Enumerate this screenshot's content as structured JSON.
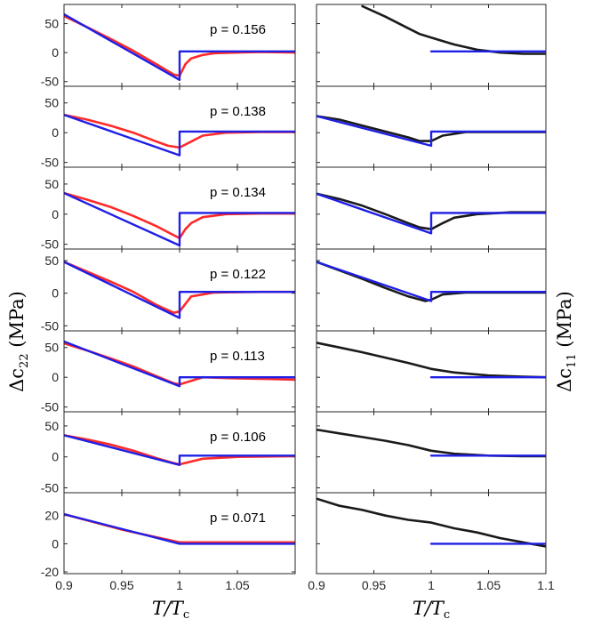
{
  "figure": {
    "ylabel_left": {
      "main": "Δc",
      "sub": "22",
      "unit": " (MPa)"
    },
    "ylabel_right": {
      "main": "Δc",
      "sub": "11",
      "unit": " (MPa)"
    },
    "xlabel": {
      "main": "T/T",
      "sub": "c"
    }
  },
  "colors": {
    "model": "#1f1fe6",
    "data_left": "#ff2a2a",
    "data_right": "#1a1a1a",
    "axes": "#262626"
  },
  "chart_data": [
    {
      "type": "line",
      "panel": "left",
      "title": "",
      "xlabel": "T/Tc",
      "ylabel": "Δc22 (MPa)",
      "xlim": [
        0.9,
        1.1
      ],
      "xticks": [
        0.9,
        0.95,
        1,
        1.05
      ],
      "grid": false,
      "rows": [
        {
          "label": "p = 0.156",
          "ylim": [
            -55,
            80
          ],
          "yticks": [
            -50,
            0,
            50
          ],
          "series": [
            {
              "name": "",
              "color": "#ff2a2a",
              "x": [
                0.9,
                0.92,
                0.94,
                0.96,
                0.98,
                0.995,
                1.0,
                1.005,
                1.01,
                1.02,
                1.03,
                1.05,
                1.07,
                1.1
              ],
              "y": [
                63,
                44,
                24,
                3,
                -20,
                -38,
                -40,
                -20,
                -10,
                -4,
                -1,
                0,
                1,
                0
              ]
            },
            {
              "name": "",
              "color": "#1f1fe6",
              "x": [
                0.9,
                1.0,
                1.0,
                1.1
              ],
              "y": [
                66,
                -47,
                2,
                2
              ]
            }
          ]
        },
        {
          "label": "p = 0.138",
          "ylim": [
            -55,
            75
          ],
          "yticks": [
            -50,
            0,
            50
          ],
          "series": [
            {
              "name": "",
              "color": "#ff2a2a",
              "x": [
                0.9,
                0.92,
                0.94,
                0.96,
                0.98,
                0.99,
                1.0,
                1.01,
                1.02,
                1.04,
                1.07,
                1.1
              ],
              "y": [
                30,
                22,
                12,
                0,
                -15,
                -22,
                -25,
                -15,
                -5,
                0,
                1,
                1
              ]
            },
            {
              "name": "",
              "color": "#1f1fe6",
              "x": [
                0.9,
                1.0,
                1.0,
                1.1
              ],
              "y": [
                30,
                -38,
                2,
                2
              ]
            }
          ]
        },
        {
          "label": "p = 0.134",
          "ylim": [
            -55,
            75
          ],
          "yticks": [
            -50,
            0,
            50
          ],
          "series": [
            {
              "name": "",
              "color": "#ff2a2a",
              "x": [
                0.9,
                0.92,
                0.94,
                0.96,
                0.98,
                0.99,
                1.0,
                1.005,
                1.01,
                1.02,
                1.04,
                1.07,
                1.1
              ],
              "y": [
                35,
                24,
                12,
                -3,
                -20,
                -30,
                -40,
                -25,
                -15,
                -5,
                0,
                1,
                1
              ]
            },
            {
              "name": "",
              "color": "#1f1fe6",
              "x": [
                0.9,
                1.0,
                1.0,
                1.1
              ],
              "y": [
                35,
                -52,
                2,
                2
              ]
            }
          ]
        },
        {
          "label": "p = 0.122",
          "ylim": [
            -55,
            65
          ],
          "yticks": [
            -50,
            0,
            50
          ],
          "series": [
            {
              "name": "",
              "color": "#ff2a2a",
              "x": [
                0.9,
                0.92,
                0.94,
                0.96,
                0.98,
                0.995,
                1.0,
                1.01,
                1.03,
                1.07,
                1.1
              ],
              "y": [
                48,
                33,
                18,
                2,
                -18,
                -30,
                -28,
                -5,
                1,
                2,
                2
              ]
            },
            {
              "name": "",
              "color": "#1f1fe6",
              "x": [
                0.9,
                1.0,
                1.0,
                1.1
              ],
              "y": [
                48,
                -38,
                2,
                2
              ]
            }
          ]
        },
        {
          "label": "p = 0.113",
          "ylim": [
            -55,
            75
          ],
          "yticks": [
            -50,
            0,
            50
          ],
          "series": [
            {
              "name": "",
              "color": "#ff2a2a",
              "x": [
                0.9,
                0.92,
                0.94,
                0.96,
                0.98,
                0.995,
                1.0,
                1.02,
                1.05,
                1.08,
                1.1
              ],
              "y": [
                57,
                45,
                32,
                18,
                2,
                -10,
                -12,
                0,
                -2,
                -3,
                -4
              ]
            },
            {
              "name": "",
              "color": "#1f1fe6",
              "x": [
                0.9,
                1.0,
                1.0,
                1.1
              ],
              "y": [
                60,
                -15,
                0,
                0
              ]
            }
          ]
        },
        {
          "label": "p = 0.106",
          "ylim": [
            -55,
            70
          ],
          "yticks": [
            -50,
            0,
            50
          ],
          "series": [
            {
              "name": "",
              "color": "#ff2a2a",
              "x": [
                0.9,
                0.92,
                0.94,
                0.96,
                0.98,
                0.995,
                1.0,
                1.02,
                1.05,
                1.1
              ],
              "y": [
                35,
                28,
                20,
                10,
                -2,
                -10,
                -12,
                -3,
                0,
                1
              ]
            },
            {
              "name": "",
              "color": "#1f1fe6",
              "x": [
                0.9,
                1.0,
                1.0,
                1.1
              ],
              "y": [
                35,
                -13,
                2,
                2
              ]
            }
          ]
        },
        {
          "label": "p = 0.071",
          "ylim": [
            -20,
            35
          ],
          "yticks": [
            -20,
            0,
            20
          ],
          "series": [
            {
              "name": "",
              "color": "#ff2a2a",
              "x": [
                0.9,
                0.95,
                1.0,
                1.05,
                1.1
              ],
              "y": [
                21,
                10,
                1,
                1,
                1
              ]
            },
            {
              "name": "",
              "color": "#1f1fe6",
              "x": [
                0.9,
                1.0,
                1.0,
                1.1
              ],
              "y": [
                21,
                0,
                0,
                0
              ]
            }
          ]
        }
      ]
    },
    {
      "type": "line",
      "panel": "right",
      "title": "",
      "xlabel": "T/Tc",
      "ylabel": "Δc11 (MPa)",
      "xlim": [
        0.9,
        1.1
      ],
      "xticks": [
        0.9,
        0.95,
        1,
        1.05,
        1.1
      ],
      "grid": false,
      "rows": [
        {
          "label": "",
          "ylim": [
            -55,
            80
          ],
          "series": [
            {
              "name": "",
              "color": "#1a1a1a",
              "x": [
                0.94,
                0.96,
                0.98,
                0.99,
                1.0,
                1.02,
                1.04,
                1.06,
                1.08,
                1.1
              ],
              "y": [
                80,
                62,
                42,
                32,
                26,
                14,
                5,
                0,
                -2,
                -2
              ]
            },
            {
              "name": "",
              "color": "#1f1fe6",
              "x": [
                1.0,
                1.1
              ],
              "y": [
                2,
                2
              ]
            }
          ]
        },
        {
          "label": "",
          "ylim": [
            -55,
            75
          ],
          "series": [
            {
              "name": "",
              "color": "#1a1a1a",
              "x": [
                0.9,
                0.92,
                0.94,
                0.96,
                0.98,
                0.99,
                1.0,
                1.01,
                1.03,
                1.07,
                1.1
              ],
              "y": [
                28,
                22,
                12,
                2,
                -8,
                -14,
                -14,
                -5,
                1,
                1,
                1
              ]
            },
            {
              "name": "",
              "color": "#1f1fe6",
              "x": [
                0.9,
                1.0,
                1.0,
                1.1
              ],
              "y": [
                28,
                -22,
                2,
                2
              ]
            }
          ]
        },
        {
          "label": "",
          "ylim": [
            -55,
            75
          ],
          "series": [
            {
              "name": "",
              "color": "#1a1a1a",
              "x": [
                0.9,
                0.92,
                0.94,
                0.96,
                0.98,
                0.99,
                1.0,
                1.01,
                1.02,
                1.04,
                1.07,
                1.1
              ],
              "y": [
                34,
                25,
                14,
                0,
                -15,
                -22,
                -25,
                -15,
                -6,
                0,
                3,
                3
              ]
            },
            {
              "name": "",
              "color": "#1f1fe6",
              "x": [
                0.9,
                1.0,
                1.0,
                1.1
              ],
              "y": [
                34,
                -32,
                2,
                2
              ]
            }
          ]
        },
        {
          "label": "",
          "ylim": [
            -55,
            65
          ],
          "series": [
            {
              "name": "",
              "color": "#1a1a1a",
              "x": [
                0.9,
                0.92,
                0.94,
                0.96,
                0.98,
                0.995,
                1.0,
                1.01,
                1.03,
                1.07,
                1.1
              ],
              "y": [
                48,
                35,
                22,
                8,
                -5,
                -12,
                -10,
                -2,
                1,
                1,
                1
              ]
            },
            {
              "name": "",
              "color": "#1f1fe6",
              "x": [
                0.9,
                1.0,
                1.0,
                1.1
              ],
              "y": [
                48,
                -12,
                2,
                2
              ]
            }
          ]
        },
        {
          "label": "",
          "ylim": [
            -55,
            75
          ],
          "series": [
            {
              "name": "",
              "color": "#1a1a1a",
              "x": [
                0.9,
                0.92,
                0.94,
                0.96,
                0.98,
                1.0,
                1.02,
                1.05,
                1.08,
                1.1
              ],
              "y": [
                58,
                50,
                42,
                33,
                24,
                14,
                8,
                3,
                1,
                0
              ]
            },
            {
              "name": "",
              "color": "#1f1fe6",
              "x": [
                1.0,
                1.1
              ],
              "y": [
                0,
                0
              ]
            }
          ]
        },
        {
          "label": "",
          "ylim": [
            -55,
            70
          ],
          "series": [
            {
              "name": "",
              "color": "#1a1a1a",
              "x": [
                0.9,
                0.92,
                0.94,
                0.96,
                0.98,
                1.0,
                1.02,
                1.05,
                1.08,
                1.1
              ],
              "y": [
                44,
                38,
                32,
                26,
                19,
                10,
                5,
                2,
                1,
                1
              ]
            },
            {
              "name": "",
              "color": "#1f1fe6",
              "x": [
                1.0,
                1.1
              ],
              "y": [
                2,
                2
              ]
            }
          ]
        },
        {
          "label": "",
          "ylim": [
            -20,
            35
          ],
          "series": [
            {
              "name": "",
              "color": "#1a1a1a",
              "x": [
                0.9,
                0.92,
                0.94,
                0.96,
                0.98,
                1.0,
                1.02,
                1.04,
                1.06,
                1.08,
                1.1
              ],
              "y": [
                32,
                27,
                24,
                20,
                17,
                15,
                11,
                8,
                4,
                1,
                -2
              ]
            },
            {
              "name": "",
              "color": "#1f1fe6",
              "x": [
                1.0,
                1.1
              ],
              "y": [
                0,
                0
              ]
            }
          ]
        }
      ]
    }
  ]
}
